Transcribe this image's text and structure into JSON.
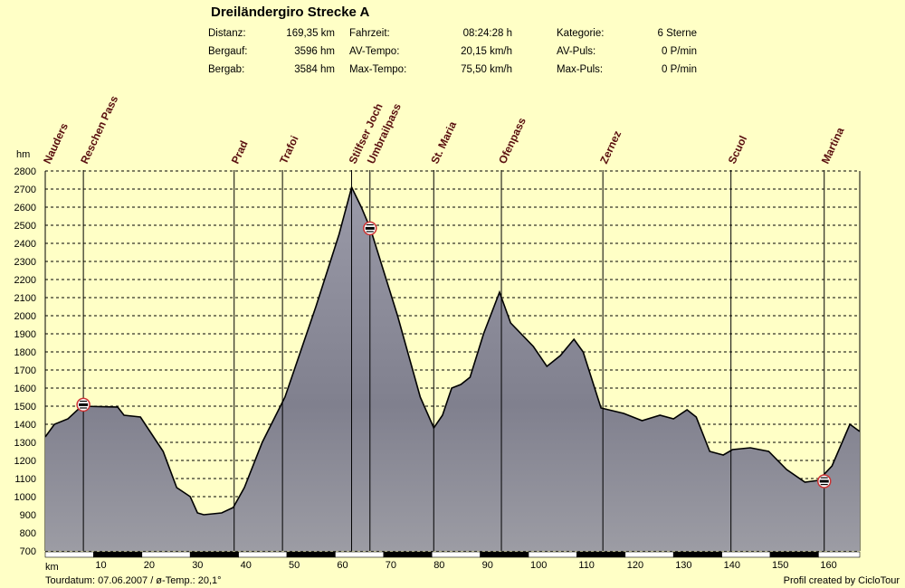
{
  "header": {
    "title": "Dreiländergiro Strecke A",
    "stats": [
      {
        "label": "Distanz:",
        "value": "169,35 km"
      },
      {
        "label": "Bergauf:",
        "value": "3596 hm"
      },
      {
        "label": "Bergab:",
        "value": "3584 hm"
      },
      {
        "label": "Fahrzeit:",
        "value": "08:24:28 h"
      },
      {
        "label": "AV-Tempo:",
        "value": "20,15 km/h"
      },
      {
        "label": "Max-Tempo:",
        "value": "75,50 km/h"
      },
      {
        "label": "Kategorie:",
        "value": "6 Sterne"
      },
      {
        "label": "AV-Puls:",
        "value": "0 P/min"
      },
      {
        "label": "Max-Puls:",
        "value": "0 P/min"
      }
    ]
  },
  "footer": {
    "left": "Tourdatum: 07.06.2007  /  ø-Temp.: 20,1°",
    "right": "Profil created by CicloTour"
  },
  "colors": {
    "background": "#ffffc6",
    "profile_fill": "#8c8c98",
    "label": "#5a1010",
    "border_ring": "#cc3333"
  },
  "chart_data": {
    "type": "area",
    "title": "Dreiländergiro Strecke A",
    "xlabel": "km",
    "ylabel": "hm",
    "xlim": [
      0,
      169.35
    ],
    "ylim": [
      700,
      2800
    ],
    "xticks": [
      10,
      20,
      30,
      40,
      50,
      60,
      70,
      80,
      90,
      100,
      110,
      120,
      130,
      140,
      150,
      160
    ],
    "yticks": [
      700,
      800,
      900,
      1000,
      1100,
      1200,
      1300,
      1400,
      1500,
      1600,
      1700,
      1800,
      1900,
      2000,
      2100,
      2200,
      2300,
      2400,
      2500,
      2600,
      2700,
      2800
    ],
    "grid": true,
    "x": [
      0,
      1.9,
      4.7,
      7.5,
      15,
      16.3,
      19.7,
      24.4,
      27.2,
      30,
      31.5,
      32.8,
      36.5,
      38.9,
      41.2,
      44.9,
      49.6,
      56,
      60.8,
      63.4,
      65.4,
      67.3,
      72.9,
      77.6,
      80.4,
      82.2,
      84.1,
      86,
      87.9,
      90.7,
      94,
      96.3,
      101,
      103.8,
      106.6,
      109.4,
      111.3,
      115,
      119.7,
      123.5,
      127.2,
      130,
      132.8,
      134.7,
      137.5,
      140.3,
      142.2,
      145.9,
      149.7,
      153.4,
      157.2,
      160,
      162.8,
      166.5,
      169.35
    ],
    "y": [
      1330,
      1400,
      1430,
      1500,
      1495,
      1450,
      1440,
      1250,
      1050,
      1000,
      910,
      900,
      910,
      940,
      1050,
      1300,
      1550,
      2050,
      2450,
      2710,
      2600,
      2480,
      2000,
      1550,
      1380,
      1450,
      1600,
      1620,
      1660,
      1900,
      2130,
      1960,
      1830,
      1720,
      1780,
      1870,
      1800,
      1490,
      1460,
      1420,
      1450,
      1430,
      1480,
      1440,
      1250,
      1230,
      1260,
      1270,
      1250,
      1150,
      1080,
      1090,
      1170,
      1400,
      1360
    ],
    "waypoints": [
      {
        "name": "Nauders",
        "km": 0,
        "border": false
      },
      {
        "name": "Reschen Pass",
        "km": 7.7,
        "border": true,
        "elev": 1508
      },
      {
        "name": "Prad",
        "km": 38.9,
        "border": false
      },
      {
        "name": "Trafoi",
        "km": 48.9,
        "border": false
      },
      {
        "name": "Stilfser Joch",
        "km": 63.2,
        "border": false
      },
      {
        "name": "Umbrailpass",
        "km": 67.0,
        "border": true,
        "elev": 2483
      },
      {
        "name": "St. Maria",
        "km": 80.2,
        "border": false
      },
      {
        "name": "Ofenpass",
        "km": 94.2,
        "border": false
      },
      {
        "name": "Zernez",
        "km": 115.2,
        "border": false
      },
      {
        "name": "Scuol",
        "km": 141.7,
        "border": false
      },
      {
        "name": "Martina",
        "km": 161.0,
        "border": true,
        "elev": 1085
      }
    ]
  }
}
